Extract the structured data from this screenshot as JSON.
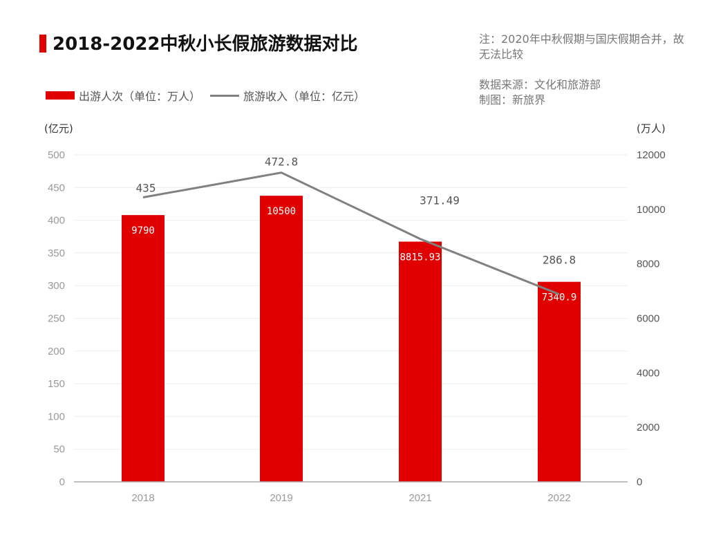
{
  "title": "2018-2022中秋小长假旅游数据对比",
  "notes": {
    "note1": "注：2020年中秋假期与国庆假期合并，故无法比较",
    "note2_line1": "数据来源：文化和旅游部",
    "note2_line2": "制图：新旅界"
  },
  "legend": {
    "bar_label": "出游人次（单位：万人）",
    "line_label": "旅游收入（单位：亿元）"
  },
  "units": {
    "left": "(亿元)",
    "right": "(万人)"
  },
  "colors": {
    "bar": "#e00000",
    "line": "#808080",
    "grid": "#eeeeee",
    "axis": "#aaaaaa"
  },
  "chart_data": {
    "type": "bar+line",
    "title": "2018-2022中秋小长假旅游数据对比",
    "categories": [
      "2018",
      "2019",
      "2021",
      "2022"
    ],
    "series": [
      {
        "name": "出游人次（单位：万人）",
        "type": "bar",
        "axis": "right",
        "values": [
          9790,
          10500,
          8815.93,
          7340.9
        ],
        "labels": [
          "9790",
          "10500",
          "8815.93",
          "7340.9"
        ]
      },
      {
        "name": "旅游收入（单位：亿元）",
        "type": "line",
        "axis": "left",
        "values": [
          435,
          472.8,
          371.49,
          286.8
        ],
        "labels": [
          "435",
          "472.8",
          "371.49",
          "286.8"
        ]
      }
    ],
    "y_left": {
      "label": "(亿元)",
      "min": 0,
      "max": 500,
      "ticks": [
        "0",
        "50",
        "100",
        "150",
        "200",
        "250",
        "300",
        "350",
        "400",
        "450",
        "500"
      ]
    },
    "y_right": {
      "label": "(万人)",
      "min": 0,
      "max": 12000,
      "ticks": [
        "0",
        "2000",
        "4000",
        "6000",
        "8000",
        "10000",
        "12000"
      ]
    },
    "grid": true,
    "legend_position": "top-left"
  }
}
